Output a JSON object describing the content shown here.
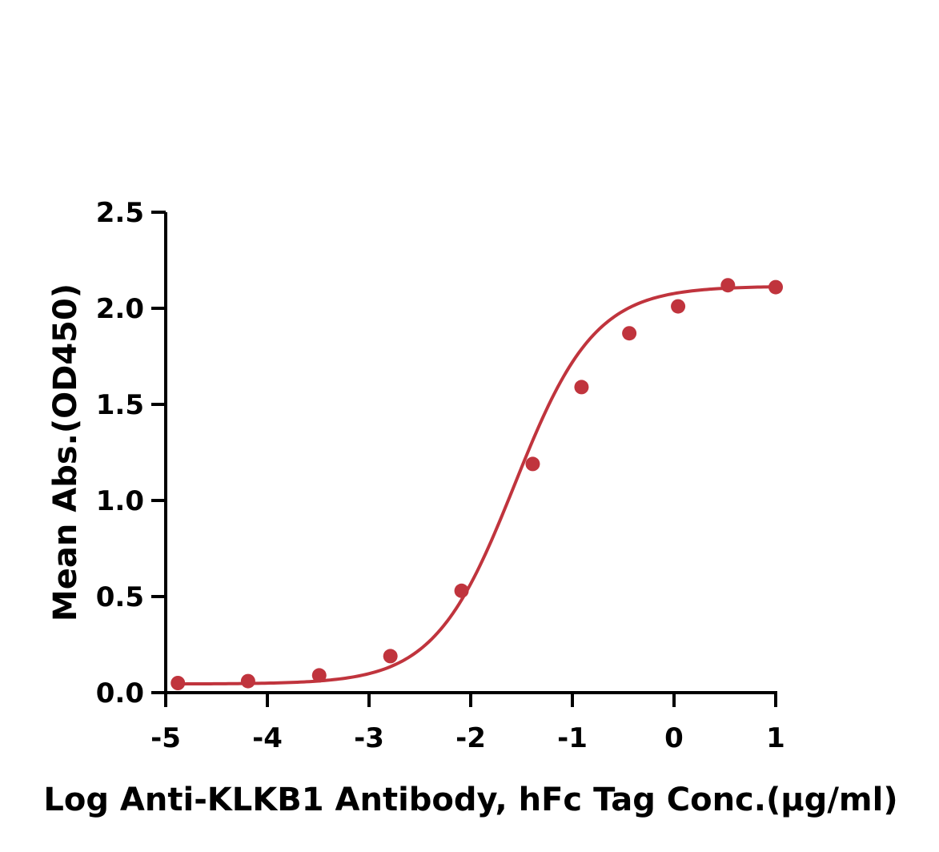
{
  "chart_data": {
    "type": "scatter",
    "xlabel": "Log Anti-KLKB1 Antibody, hFc Tag Conc.(μg/ml)",
    "ylabel": "Mean Abs.(OD450)",
    "xlim": [
      -5,
      1
    ],
    "ylim": [
      0,
      2.5
    ],
    "x_ticks": [
      "-5",
      "-4",
      "-3",
      "-2",
      "-1",
      "0",
      "1"
    ],
    "y_ticks": [
      "0.0",
      "0.5",
      "1.0",
      "1.5",
      "2.0",
      "2.5"
    ],
    "grid": false,
    "legend": "none",
    "series": [
      {
        "points": [
          {
            "x": -4.88,
            "y": 0.05
          },
          {
            "x": -4.19,
            "y": 0.06
          },
          {
            "x": -3.49,
            "y": 0.09
          },
          {
            "x": -2.79,
            "y": 0.19
          },
          {
            "x": -2.09,
            "y": 0.53
          },
          {
            "x": -1.39,
            "y": 1.19
          },
          {
            "x": -0.91,
            "y": 1.59
          },
          {
            "x": -0.44,
            "y": 1.87
          },
          {
            "x": 0.04,
            "y": 2.01
          },
          {
            "x": 0.53,
            "y": 2.12
          },
          {
            "x": 1.0,
            "y": 2.11
          }
        ],
        "fit_curve": {
          "model": "4PL",
          "bottom": 0.045,
          "top": 2.115,
          "log_ec50": -1.57,
          "hill_slope": 1.1
        }
      }
    ],
    "colors": {
      "series": "#c0343d",
      "axis": "#000000"
    }
  }
}
